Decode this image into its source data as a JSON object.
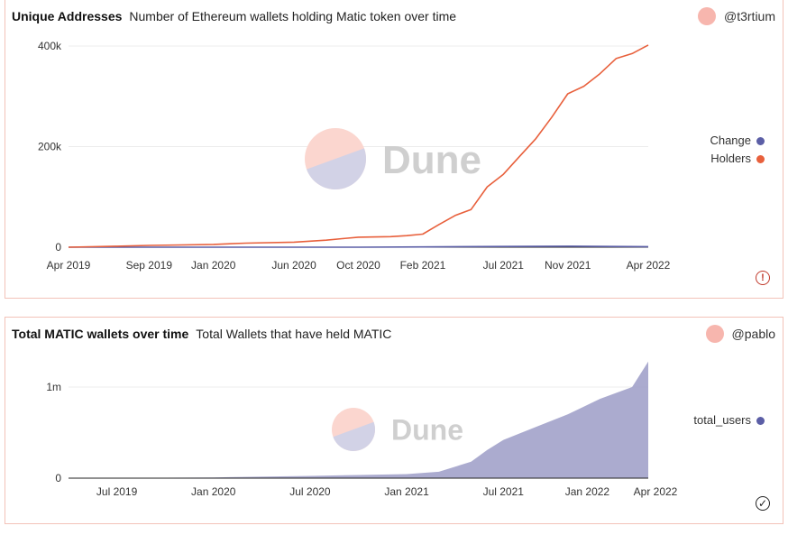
{
  "panels": [
    {
      "title": "Unique Addresses",
      "subtitle": "Number of Ethereum wallets holding Matic token over time",
      "author": "@t3rtium",
      "watermark": "Dune",
      "status_icon": "warning-icon",
      "status_glyph": "!"
    },
    {
      "title": "Total MATIC wallets over time",
      "subtitle": "Total Wallets that have held MATIC",
      "author": "@pablo",
      "watermark": "Dune",
      "status_icon": "check-circle-icon",
      "status_glyph": "✓"
    }
  ],
  "colors": {
    "holders": "#e8603c",
    "change": "#5b5ea6",
    "total_users": "#a7a7cc",
    "avatar": "#f7b6ae",
    "border": "#f3c2b8"
  },
  "chart_data": [
    {
      "type": "line",
      "x_ticks": [
        "Apr 2019",
        "Sep 2019",
        "Jan 2020",
        "Jun 2020",
        "Oct 2020",
        "Feb 2021",
        "Jul 2021",
        "Nov 2021",
        "Apr 2022"
      ],
      "y_ticks": [
        "0",
        "200k",
        "400k"
      ],
      "ylim": [
        0,
        400000
      ],
      "grid": true,
      "legend_position": "right",
      "series": [
        {
          "name": "Change",
          "x": [
            "Apr 2019",
            "Sep 2019",
            "Jan 2020",
            "Jun 2020",
            "Oct 2020",
            "Feb 2021",
            "Jul 2021",
            "Nov 2021",
            "Apr 2022"
          ],
          "values": [
            0,
            0,
            0,
            0,
            0,
            500,
            1500,
            2000,
            1000
          ]
        },
        {
          "name": "Holders",
          "x": [
            "Apr 2019",
            "Jul 2019",
            "Sep 2019",
            "Nov 2019",
            "Jan 2020",
            "Mar 2020",
            "Jun 2020",
            "Aug 2020",
            "Sep 2020",
            "Oct 2020",
            "Dec 2020",
            "Jan 2021",
            "Feb 2021",
            "Mar 2021",
            "Apr 2021",
            "May 2021",
            "Jun 2021",
            "Jul 2021",
            "Aug 2021",
            "Sep 2021",
            "Oct 2021",
            "Nov 2021",
            "Dec 2021",
            "Jan 2022",
            "Feb 2022",
            "Mar 2022",
            "Apr 2022"
          ],
          "values": [
            0,
            2000,
            3500,
            4500,
            5500,
            8000,
            10000,
            14000,
            17000,
            20000,
            21000,
            23000,
            26000,
            45000,
            63000,
            75000,
            120000,
            145000,
            180000,
            215000,
            258000,
            305000,
            320000,
            345000,
            375000,
            385000,
            402000
          ]
        }
      ]
    },
    {
      "type": "area",
      "x_ticks": [
        "Jul 2019",
        "Jan 2020",
        "Jul 2020",
        "Jan 2021",
        "Jul 2021",
        "Jan 2022",
        "Apr 2022"
      ],
      "y_ticks": [
        "0",
        "1m"
      ],
      "ylim": [
        0,
        1000000
      ],
      "grid": true,
      "legend_position": "right",
      "series": [
        {
          "name": "total_users",
          "x": [
            "Apr 2019",
            "Jul 2019",
            "Jan 2020",
            "Jul 2020",
            "Oct 2020",
            "Jan 2021",
            "Mar 2021",
            "May 2021",
            "Jun 2021",
            "Jul 2021",
            "Sep 2021",
            "Nov 2021",
            "Jan 2022",
            "Mar 2022",
            "Apr 2022"
          ],
          "values": [
            0,
            2000,
            8000,
            25000,
            35000,
            45000,
            70000,
            180000,
            310000,
            420000,
            560000,
            700000,
            870000,
            1000000,
            1280000
          ]
        }
      ]
    }
  ]
}
